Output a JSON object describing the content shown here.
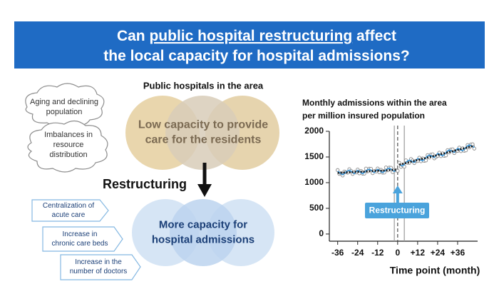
{
  "header": {
    "title": {
      "lines": [
        [
          "Can ",
          "public hospital restructuring",
          " affect"
        ],
        [
          "the local capacity for hospital admissions?"
        ]
      ]
    }
  },
  "diagram": {
    "hospitals_label": "Public hospitals in the area",
    "low_capacity": [
      "Low capacity to provide",
      "care for the residents"
    ],
    "problems": [
      [
        "Aging and declining",
        "population"
      ],
      [
        "Imbalances in",
        "resource",
        "distribution"
      ]
    ],
    "restructuring": "Restructuring",
    "more_capacity": [
      "More capacity for",
      "hospital admissions"
    ],
    "measures": [
      [
        "Centralization of",
        "acute care"
      ],
      [
        "Increase in",
        "chronic care beds"
      ],
      [
        "Increase in the",
        "number of doctors"
      ]
    ]
  },
  "chart_data": {
    "type": "line",
    "title": [
      "Monthly admissions within the area",
      "per million insured population"
    ],
    "xlabel": "Time point (month)",
    "annotation": "Restructuring",
    "annotation_x": 0,
    "reference_lines": {
      "dashed": [
        0
      ],
      "solid": [
        -2,
        4
      ]
    },
    "x": [
      -36,
      -35,
      -34,
      -33,
      -32,
      -31,
      -30,
      -29,
      -28,
      -27,
      -26,
      -25,
      -24,
      -23,
      -22,
      -21,
      -20,
      -19,
      -18,
      -17,
      -16,
      -15,
      -14,
      -13,
      -12,
      -11,
      -10,
      -9,
      -8,
      -7,
      -6,
      -5,
      -4,
      -3,
      -2,
      -1,
      0,
      1,
      2,
      3,
      4,
      5,
      6,
      7,
      8,
      9,
      10,
      11,
      12,
      13,
      14,
      15,
      16,
      17,
      18,
      19,
      20,
      21,
      22,
      23,
      24,
      25,
      26,
      27,
      28,
      29,
      30,
      31,
      32,
      33,
      34,
      35,
      36,
      37,
      38,
      39,
      40,
      41,
      42,
      43,
      44,
      45,
      46
    ],
    "series": [
      {
        "mark": "points",
        "color": "#8a8a8a",
        "values": [
          1245,
          1172,
          1183,
          1140,
          1217,
          1204,
          1195,
          1262,
          1229,
          1170,
          1207,
          1199,
          1255,
          1182,
          1229,
          1176,
          1177,
          1274,
          1221,
          1272,
          1269,
          1186,
          1227,
          1219,
          1276,
          1203,
          1249,
          1196,
          1198,
          1294,
          1241,
          1293,
          1289,
          1206,
          1248,
          1240,
          1230,
          1385,
          1308,
          1336,
          1311,
          1433,
          1388,
          1386,
          1459,
          1432,
          1381,
          1424,
          1422,
          1485,
          1418,
          1472,
          1425,
          1433,
          1536,
          1489,
          1547,
          1551,
          1474,
          1502,
          1520,
          1583,
          1517,
          1570,
          1523,
          1531,
          1634,
          1588,
          1646,
          1649,
          1577,
          1620,
          1619,
          1682,
          1615,
          1668,
          1621,
          1630,
          1733,
          1686,
          1744,
          1747,
          1664
        ]
      },
      {
        "mark": "line",
        "color": "#3d9be0",
        "values": [
          1220,
          1202,
          1173,
          1155,
          1177,
          1209,
          1230,
          1242,
          1224,
          1195,
          1177,
          1209,
          1240,
          1222,
          1194,
          1176,
          1197,
          1229,
          1251,
          1262,
          1244,
          1216,
          1197,
          1229,
          1261,
          1243,
          1214,
          1196,
          1218,
          1249,
          1271,
          1283,
          1264,
          1236,
          1218,
          1250,
          null,
          1360,
          1338,
          1326,
          1355,
          1393,
          1421,
          1439,
          1427,
          1406,
          1394,
          1432,
          1470,
          1458,
          1437,
          1425,
          1453,
          1491,
          1519,
          1537,
          1526,
          1504,
          1492,
          1530,
          1568,
          1557,
          1535,
          1523,
          1551,
          1589,
          1618,
          1636,
          1624,
          1602,
          1590,
          1629,
          1667,
          1655,
          1633,
          1621,
          1650,
          1688,
          1716,
          1734,
          1722,
          1701,
          1689
        ]
      },
      {
        "mark": "line",
        "dash": "dotted",
        "color": "#111111",
        "values": [
          1190,
          1192,
          1193,
          1195,
          1197,
          1199,
          1200,
          1202,
          1204,
          1205,
          1207,
          1209,
          1210,
          1212,
          1214,
          1216,
          1217,
          1219,
          1221,
          1222,
          1224,
          1226,
          1227,
          1229,
          1231,
          1233,
          1234,
          1236,
          1238,
          1239,
          1241,
          1243,
          1244,
          1246,
          1248,
          1250,
          null,
          1350,
          1358,
          1366,
          1375,
          1383,
          1391,
          1399,
          1407,
          1416,
          1424,
          1432,
          1440,
          1448,
          1457,
          1465,
          1473,
          1481,
          1489,
          1497,
          1506,
          1514,
          1522,
          1530,
          1538,
          1547,
          1555,
          1563,
          1571,
          1579,
          1588,
          1596,
          1604,
          1612,
          1620,
          1629,
          1637,
          1645,
          1653,
          1661,
          1670,
          1678,
          1686,
          1694,
          1702,
          1711,
          1719
        ]
      }
    ],
    "xlim": [
      -41,
      48
    ],
    "ylim": [
      -140,
      2000
    ],
    "xticks": [
      -36,
      -24,
      -12,
      0,
      {
        "value": 12,
        "label": "+12"
      },
      {
        "value": 24,
        "label": "+24"
      },
      {
        "value": 36,
        "label": "+36"
      }
    ],
    "yticks": [
      0,
      500,
      1000,
      1500,
      2000
    ]
  }
}
